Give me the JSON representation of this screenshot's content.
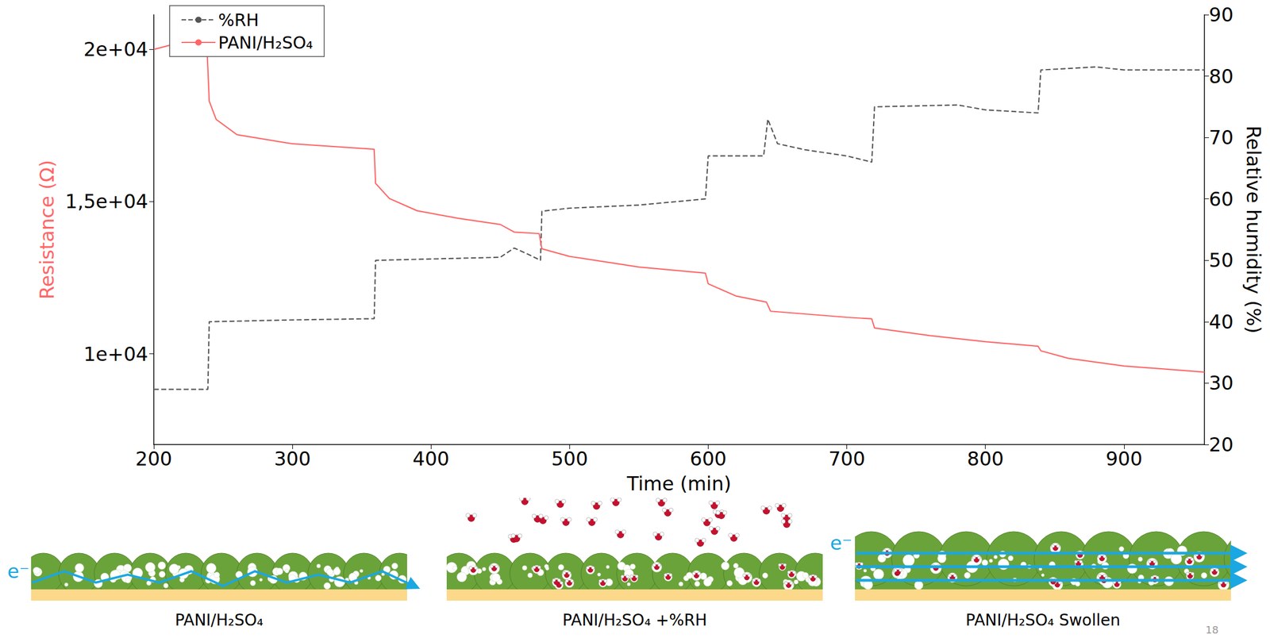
{
  "chart_data": {
    "type": "line",
    "xlabel": "Time (min)",
    "ylabel": "Resistance (Ω)",
    "y2label": "Relative humidity (%)",
    "xlim": [
      200,
      958
    ],
    "xticks": [
      200,
      300,
      400,
      500,
      600,
      700,
      800,
      900
    ],
    "ylim": [
      7020,
      21140
    ],
    "yticks": [
      {
        "value": 10000,
        "label": "1e+04"
      },
      {
        "value": 15000,
        "label": "1,5e+04"
      },
      {
        "value": 20000,
        "label": "2e+04"
      }
    ],
    "y2lim": [
      20,
      90
    ],
    "y2ticks": [
      20,
      30,
      40,
      50,
      60,
      70,
      80,
      90
    ],
    "grid": false,
    "legend": "upper left",
    "series": [
      {
        "name": "%RH",
        "color": "#555555",
        "line_style": "dashed",
        "axis": "y2",
        "x": [
          200,
          239,
          240,
          300,
          359,
          360,
          450,
          460,
          470,
          479,
          480,
          500,
          550,
          598,
          600,
          640,
          643,
          650,
          670,
          700,
          718,
          720,
          780,
          800,
          838,
          840,
          880,
          900,
          958
        ],
        "values": [
          29,
          29,
          40,
          40.3,
          40.5,
          50,
          50.5,
          52,
          51,
          50,
          58,
          58.5,
          59,
          60,
          67,
          67,
          73,
          69,
          68,
          67,
          66,
          75,
          75.3,
          74.5,
          74,
          81,
          81.5,
          81,
          81
        ]
      },
      {
        "name": "PANI/H₂SO₄",
        "color": "#ff6666",
        "line_style": "solid",
        "x": [
          200,
          238,
          240,
          245,
          260,
          300,
          359,
          360,
          370,
          390,
          420,
          450,
          460,
          478,
          480,
          500,
          550,
          598,
          600,
          620,
          642,
          645,
          700,
          718,
          720,
          760,
          800,
          838,
          840,
          860,
          900,
          958
        ],
        "values": [
          20000,
          20450,
          18300,
          17700,
          17200,
          16900,
          16720,
          15600,
          15100,
          14700,
          14450,
          14250,
          14000,
          13950,
          13450,
          13200,
          12850,
          12650,
          12300,
          11900,
          11700,
          11400,
          11200,
          11150,
          10850,
          10600,
          10400,
          10250,
          10100,
          9850,
          9600,
          9400
        ]
      }
    ]
  },
  "illustration": {
    "electron_label": "e⁻",
    "panels": [
      {
        "label": "PANI/H₂SO₄"
      },
      {
        "label": "PANI/H₂SO₄ +%RH"
      },
      {
        "label": "PANI/H₂SO₄ Swollen"
      }
    ],
    "page_number": "18"
  }
}
